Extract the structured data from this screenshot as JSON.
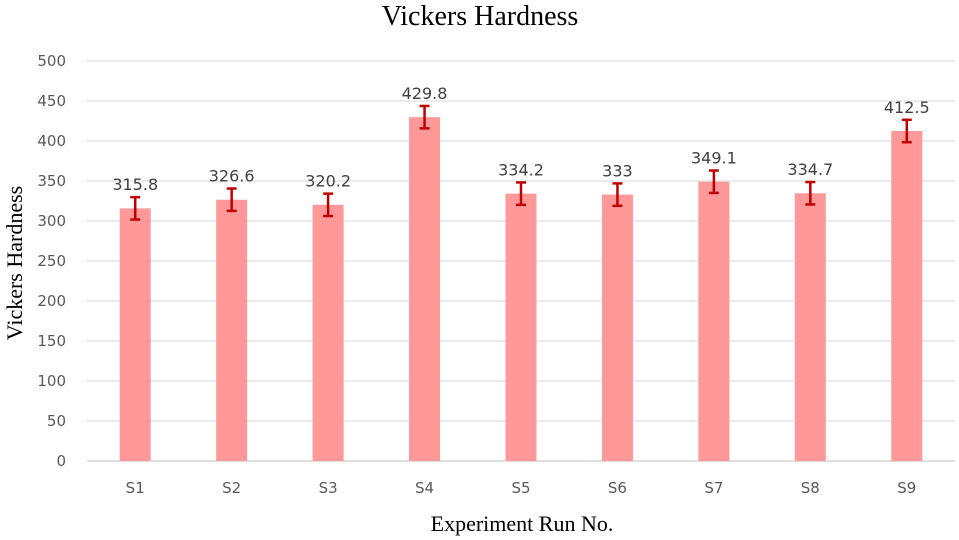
{
  "chart_data": {
    "type": "bar",
    "title": "Vickers Hardness",
    "xlabel": "Experiment Run No.",
    "ylabel": "Vickers Hardness",
    "categories": [
      "S1",
      "S2",
      "S3",
      "S4",
      "S5",
      "S6",
      "S7",
      "S8",
      "S9"
    ],
    "values": [
      315.8,
      326.6,
      320.2,
      429.8,
      334.2,
      333,
      349.1,
      334.7,
      412.5
    ],
    "value_labels": [
      "315.8",
      "326.6",
      "320.2",
      "429.8",
      "334.2",
      "333",
      "349.1",
      "334.7",
      "412.5"
    ],
    "error": [
      14,
      14,
      14,
      14,
      14,
      14,
      14,
      14,
      14
    ],
    "ylim": [
      0,
      500
    ],
    "yticks": [
      0,
      50,
      100,
      150,
      200,
      250,
      300,
      350,
      400,
      450,
      500
    ],
    "grid": true,
    "legend": "none",
    "colors": {
      "bar": "#ff9999",
      "error_bar": "#c00000"
    }
  }
}
